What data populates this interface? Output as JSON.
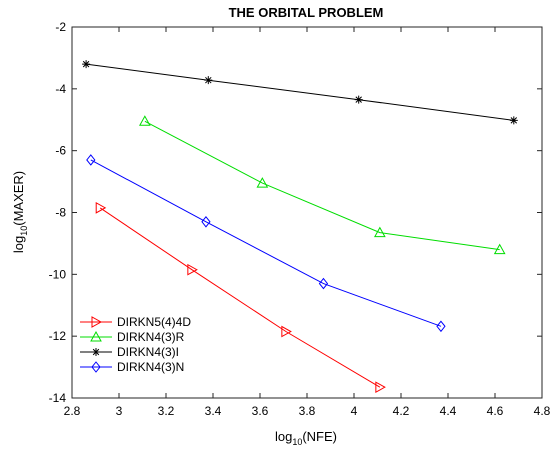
{
  "chart_data": {
    "type": "line",
    "title": "THE ORBITAL PROBLEM",
    "xlabel": {
      "base": "log",
      "sub": "10",
      "rest": "(NFE)"
    },
    "ylabel": {
      "base": "log",
      "sub": "10",
      "rest": "(MAXER)"
    },
    "xlim": [
      2.8,
      4.8
    ],
    "ylim": [
      -14,
      -2
    ],
    "xticks": [
      2.8,
      3,
      3.2,
      3.4,
      3.6,
      3.8,
      4,
      4.2,
      4.4,
      4.6,
      4.8
    ],
    "yticks": [
      -14,
      -12,
      -10,
      -8,
      -6,
      -4,
      -2
    ],
    "xtick_labels": [
      "2.8",
      "3",
      "3.2",
      "3.4",
      "3.6",
      "3.8",
      "4",
      "4.2",
      "4.4",
      "4.6",
      "4.8"
    ],
    "ytick_labels": [
      "-14",
      "-12",
      "-10",
      "-8",
      "-6",
      "-4",
      "-2"
    ],
    "grid": false,
    "legend_position": "bottom-left",
    "series": [
      {
        "name": "DIRKN5(4)4D",
        "color": "#ff0000",
        "marker": "triangle-right",
        "x": [
          2.92,
          3.31,
          3.71,
          4.11
        ],
        "y": [
          -7.85,
          -9.85,
          -11.85,
          -13.65
        ]
      },
      {
        "name": "DIRKN4(3)R",
        "color": "#00dd00",
        "marker": "triangle-up",
        "x": [
          3.11,
          3.61,
          4.11,
          4.62
        ],
        "y": [
          -5.05,
          -7.05,
          -8.65,
          -9.2
        ]
      },
      {
        "name": "DIRKN4(3)I",
        "color": "#000000",
        "marker": "asterisk",
        "x": [
          2.86,
          3.38,
          4.02,
          4.68
        ],
        "y": [
          -3.2,
          -3.72,
          -4.35,
          -5.02
        ]
      },
      {
        "name": "DIRKN4(3)N",
        "color": "#0000ff",
        "marker": "diamond",
        "x": [
          2.88,
          3.37,
          3.87,
          4.37
        ],
        "y": [
          -6.3,
          -8.3,
          -10.3,
          -11.68
        ]
      }
    ]
  }
}
